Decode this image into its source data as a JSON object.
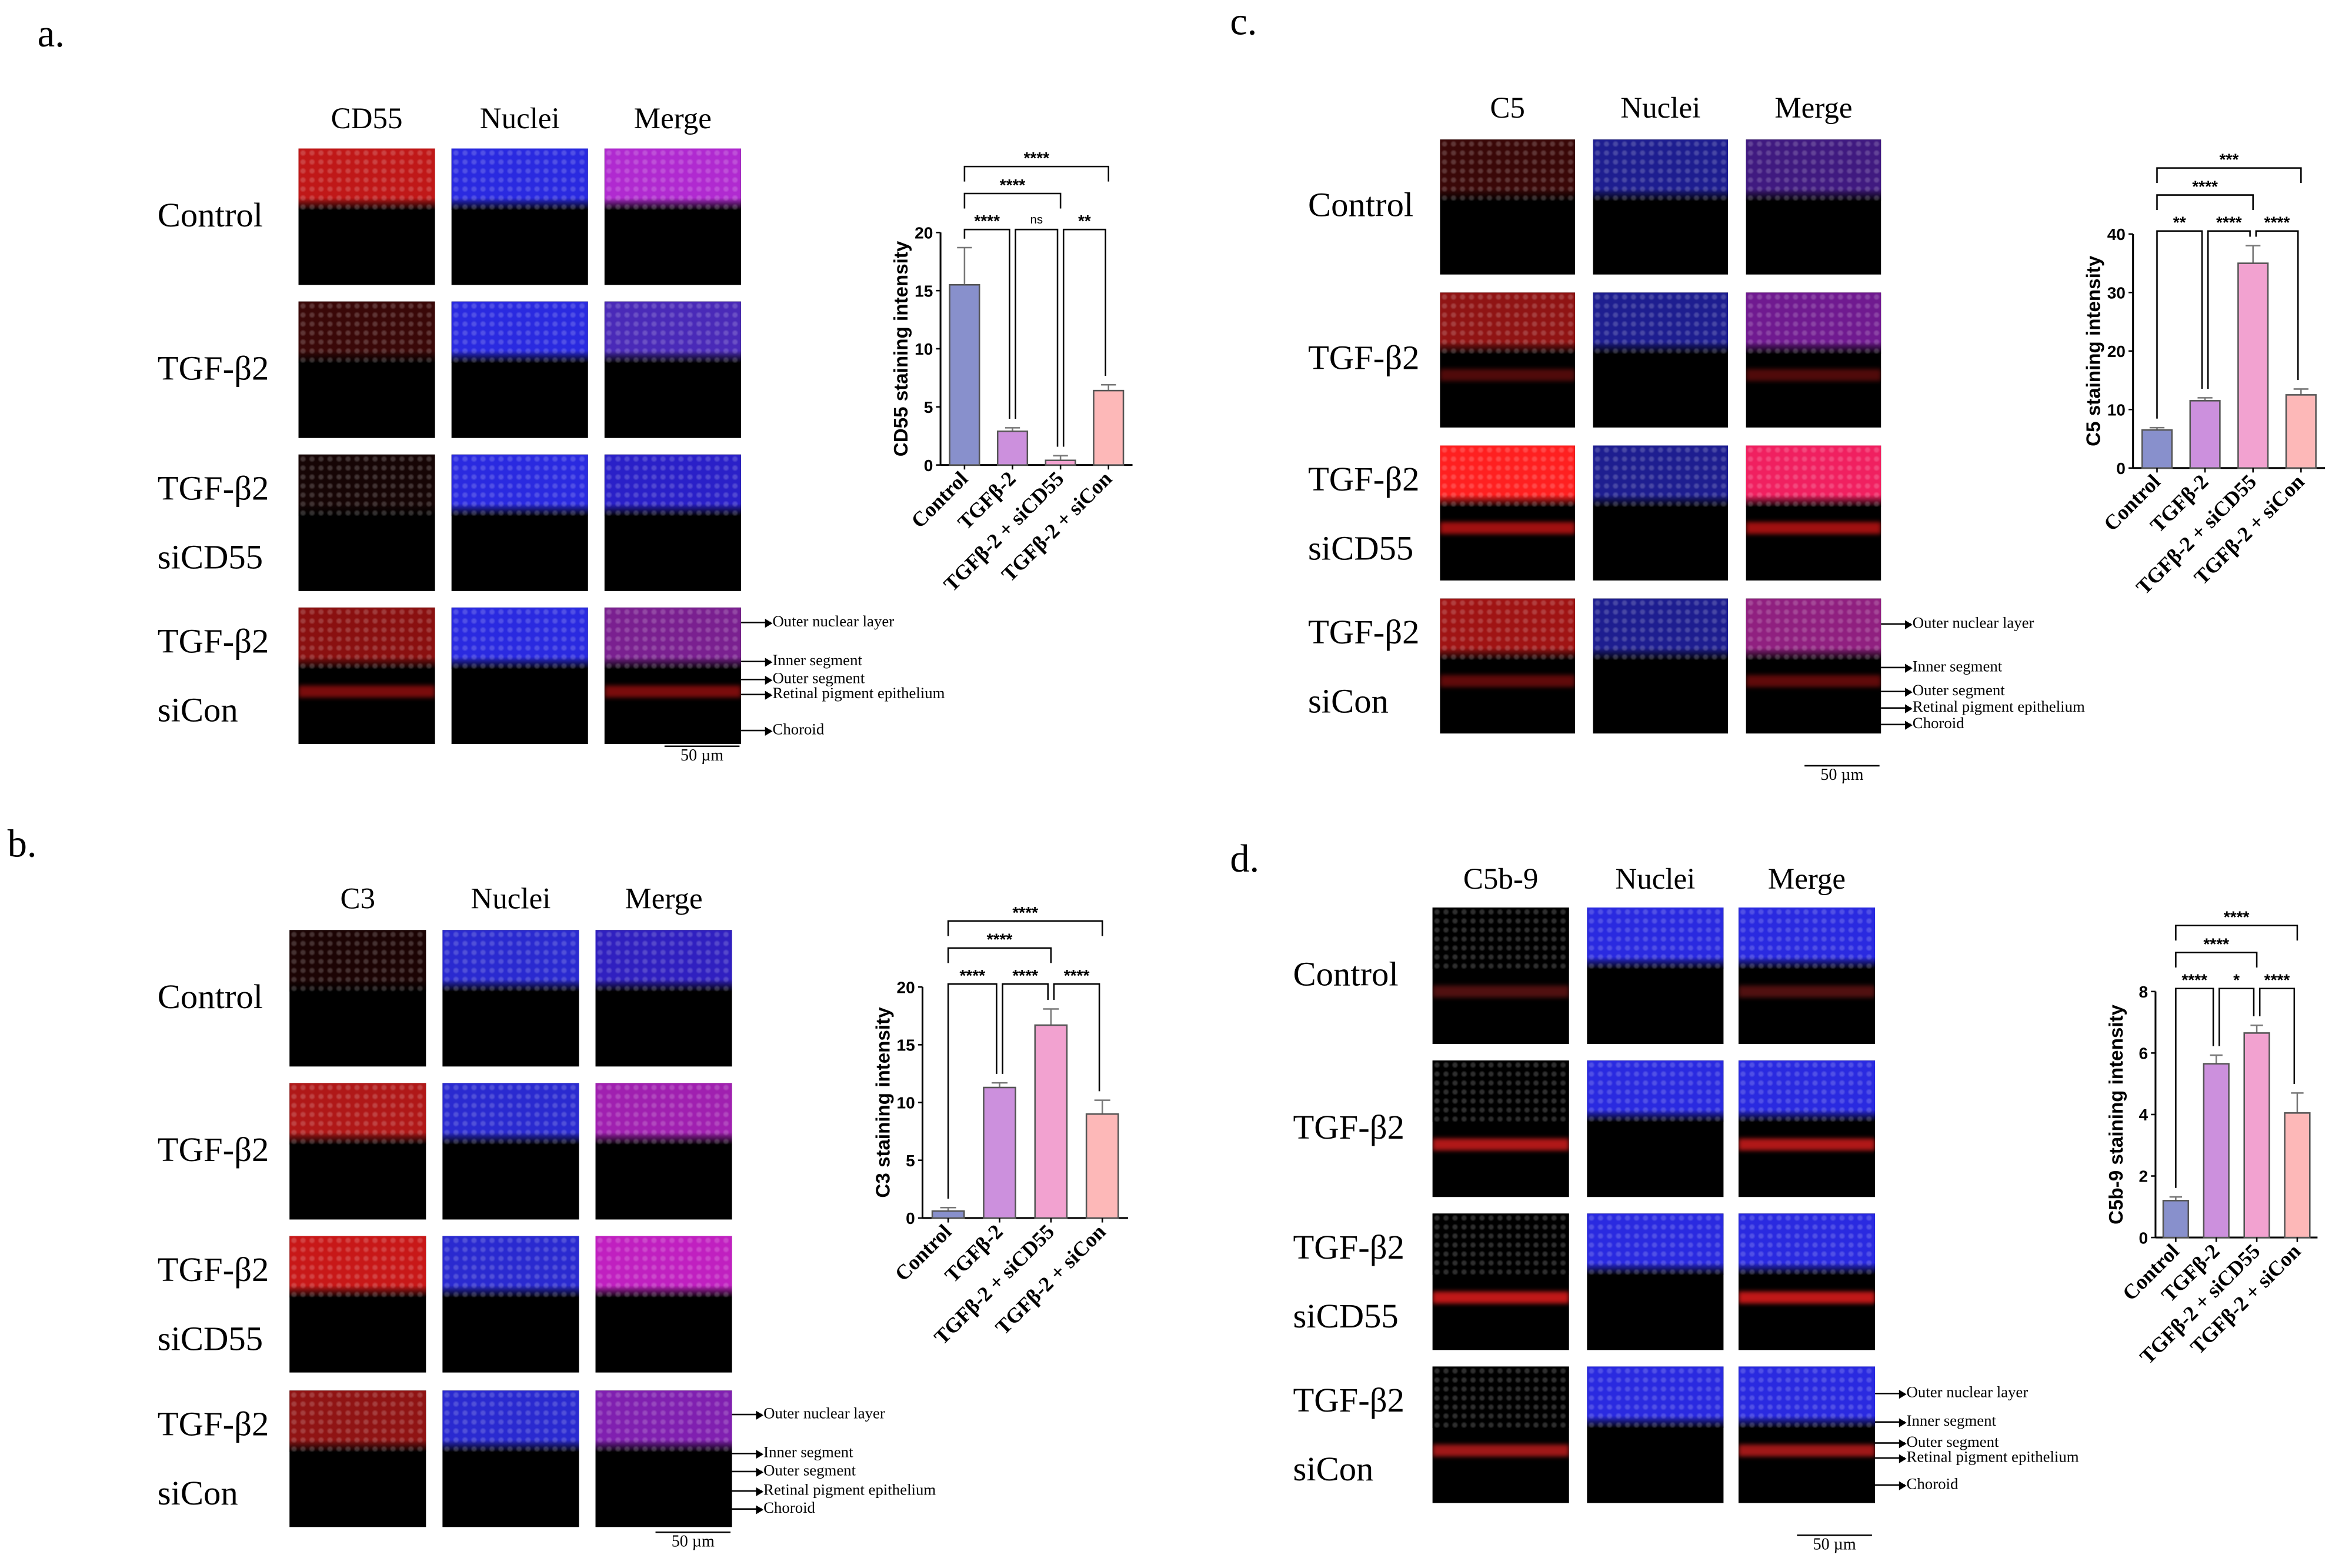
{
  "panels": [
    {
      "letter": "a.",
      "columns": [
        "CD55",
        "Nuclei",
        "Merge"
      ],
      "rows": [
        {
          "label": [
            "Control"
          ],
          "tiles": [
            {
              "top": "#c01818"
            },
            {
              "top": "#2a2ae0"
            },
            {
              "top": "#b02ad0"
            }
          ]
        },
        {
          "label": [
            "TGF-β2"
          ],
          "tiles": [
            {
              "top": "#3a0808"
            },
            {
              "top": "#2a2ae0"
            },
            {
              "top": "#4a2ab8"
            }
          ]
        },
        {
          "label": [
            "TGF-β2",
            "siCD55"
          ],
          "tiles": [
            {
              "top": "#160505"
            },
            {
              "top": "#2a2ae0"
            },
            {
              "top": "#2a20c8"
            }
          ]
        },
        {
          "label": [
            "TGF-β2",
            "siCon"
          ],
          "tiles": [
            {
              "top": "#8a1010",
              "band": "#7a0c0c"
            },
            {
              "top": "#2a2ae0"
            },
            {
              "top": "#7a2090",
              "band": "#7a0c0c"
            }
          ]
        }
      ],
      "layers": [
        "Outer nuclear layer",
        "Inner segment",
        "Outer segment",
        "Retinal pigment epithelium",
        "Choroid"
      ],
      "scale_bar": "50 µm"
    },
    {
      "letter": "b.",
      "columns": [
        "C3",
        "Nuclei",
        "Merge"
      ],
      "rows": [
        {
          "label": [
            "Control"
          ],
          "tiles": [
            {
              "top": "#1c0404"
            },
            {
              "top": "#2a2ad0"
            },
            {
              "top": "#3020c0"
            }
          ]
        },
        {
          "label": [
            "TGF-β2"
          ],
          "tiles": [
            {
              "top": "#b01818"
            },
            {
              "top": "#2a2ad0"
            },
            {
              "top": "#a020b0"
            }
          ]
        },
        {
          "label": [
            "TGF-β2",
            "siCD55"
          ],
          "tiles": [
            {
              "top": "#c81818"
            },
            {
              "top": "#2a2ad0"
            },
            {
              "top": "#c020c0"
            }
          ]
        },
        {
          "label": [
            "TGF-β2",
            "siCon"
          ],
          "tiles": [
            {
              "top": "#901414"
            },
            {
              "top": "#2a2ad0"
            },
            {
              "top": "#8020b0"
            }
          ]
        }
      ],
      "layers": [
        "Outer nuclear layer",
        "Inner segment",
        "Outer segment",
        "Retinal pigment epithelium",
        "Choroid"
      ],
      "scale_bar": "50 µm"
    },
    {
      "letter": "c.",
      "columns": [
        "C5",
        "Nuclei",
        "Merge"
      ],
      "rows": [
        {
          "label": [
            "Control"
          ],
          "tiles": [
            {
              "top": "#3a0808"
            },
            {
              "top": "#1e1e90"
            },
            {
              "top": "#401a80"
            }
          ]
        },
        {
          "label": [
            "TGF-β2"
          ],
          "tiles": [
            {
              "top": "#901414",
              "band": "#500a0a"
            },
            {
              "top": "#1e1e90"
            },
            {
              "top": "#701a90",
              "band": "#500a0a"
            }
          ]
        },
        {
          "label": [
            "TGF-β2",
            "siCD55"
          ],
          "tiles": [
            {
              "top": "#ff2020",
              "band": "#a01010"
            },
            {
              "top": "#1e1e90"
            },
            {
              "top": "#f02060",
              "band": "#a01010"
            }
          ]
        },
        {
          "label": [
            "TGF-β2",
            "siCon"
          ],
          "tiles": [
            {
              "top": "#a01414",
              "band": "#600a0a"
            },
            {
              "top": "#1e1e90"
            },
            {
              "top": "#902080",
              "band": "#600a0a"
            }
          ]
        }
      ],
      "layers": [
        "Outer nuclear layer",
        "Inner segment",
        "Outer segment",
        "Retinal pigment epithelium",
        "Choroid"
      ],
      "scale_bar": "50 µm"
    },
    {
      "letter": "d.",
      "columns": [
        "C5b-9",
        "Nuclei",
        "Merge"
      ],
      "rows": [
        {
          "label": [
            "Control"
          ],
          "tiles": [
            {
              "top": "#000000",
              "band": "#501010"
            },
            {
              "top": "#2a2ae0"
            },
            {
              "top": "#2a2ae0",
              "band": "#501010"
            }
          ]
        },
        {
          "label": [
            "TGF-β2"
          ],
          "tiles": [
            {
              "top": "#000000",
              "band": "#b01818"
            },
            {
              "top": "#2a2ae0"
            },
            {
              "top": "#2a2ae0",
              "band": "#b01818"
            }
          ]
        },
        {
          "label": [
            "TGF-β2",
            "siCD55"
          ],
          "tiles": [
            {
              "top": "#000000",
              "band": "#c01818"
            },
            {
              "top": "#2a2ae0"
            },
            {
              "top": "#2a2ae0",
              "band": "#c01818"
            }
          ]
        },
        {
          "label": [
            "TGF-β2",
            "siCon"
          ],
          "tiles": [
            {
              "top": "#000000",
              "band": "#a01818"
            },
            {
              "top": "#2a2ae0"
            },
            {
              "top": "#2a2ae0",
              "band": "#a01818"
            }
          ]
        }
      ],
      "layers": [
        "Outer nuclear layer",
        "Inner segment",
        "Outer segment",
        "Retinal pigment epithelium",
        "Choroid"
      ],
      "scale_bar": "50 µm"
    }
  ],
  "colors": {
    "bars": [
      "#8890cc",
      "#cc90dd",
      "#f2a2d0",
      "#fdb8b8"
    ],
    "bar_edge": "#555555",
    "error": "#777777"
  },
  "chart_data": [
    {
      "type": "bar",
      "ylabel": "CD55 staining intensity",
      "categories": [
        "Control",
        "TGFβ-2",
        "TGFβ-2 + siCD55",
        "TGFβ-2 + siCon"
      ],
      "values": [
        15.5,
        2.9,
        0.4,
        6.4
      ],
      "errors": [
        3.2,
        0.3,
        0.4,
        0.5
      ],
      "ylim": [
        0,
        20
      ],
      "yticks": [
        0,
        5,
        10,
        15,
        20
      ],
      "comparisons": [
        {
          "a": 0,
          "b": 1,
          "label": "****"
        },
        {
          "a": 1,
          "b": 2,
          "label": "ns"
        },
        {
          "a": 2,
          "b": 3,
          "label": "**"
        },
        {
          "a": 0,
          "b": 2,
          "label": "****"
        },
        {
          "a": 0,
          "b": 3,
          "label": "****"
        }
      ]
    },
    {
      "type": "bar",
      "ylabel": "C3 staining intensity",
      "categories": [
        "Control",
        "TGFβ-2",
        "TGFβ-2 + siCD55",
        "TGFβ-2 + siCon"
      ],
      "values": [
        0.6,
        11.3,
        16.7,
        9.0
      ],
      "errors": [
        0.3,
        0.4,
        1.4,
        1.2
      ],
      "ylim": [
        0,
        20
      ],
      "yticks": [
        0,
        5,
        10,
        15,
        20
      ],
      "comparisons": [
        {
          "a": 0,
          "b": 1,
          "label": "****"
        },
        {
          "a": 1,
          "b": 2,
          "label": "****"
        },
        {
          "a": 2,
          "b": 3,
          "label": "****"
        },
        {
          "a": 0,
          "b": 2,
          "label": "****"
        },
        {
          "a": 0,
          "b": 3,
          "label": "****"
        }
      ]
    },
    {
      "type": "bar",
      "ylabel": "C5 staining intensity",
      "categories": [
        "Control",
        "TGFβ-2",
        "TGFβ-2 + siCD55",
        "TGFβ-2 + siCon"
      ],
      "values": [
        6.5,
        11.5,
        35.0,
        12.5
      ],
      "errors": [
        0.4,
        0.5,
        3.0,
        1.0
      ],
      "ylim": [
        0,
        40
      ],
      "yticks": [
        0,
        10,
        20,
        30,
        40
      ],
      "comparisons": [
        {
          "a": 0,
          "b": 1,
          "label": "**"
        },
        {
          "a": 1,
          "b": 2,
          "label": "****"
        },
        {
          "a": 2,
          "b": 3,
          "label": "****"
        },
        {
          "a": 0,
          "b": 2,
          "label": "****"
        },
        {
          "a": 0,
          "b": 3,
          "label": "***"
        }
      ]
    },
    {
      "type": "bar",
      "ylabel": "C5b-9 staining intensity",
      "categories": [
        "Control",
        "TGFβ-2",
        "TGFβ-2 + siCD55",
        "TGFβ-2 + siCon"
      ],
      "values": [
        1.2,
        5.65,
        6.65,
        4.05
      ],
      "errors": [
        0.12,
        0.28,
        0.25,
        0.65
      ],
      "ylim": [
        0,
        8
      ],
      "yticks": [
        0,
        2,
        4,
        6,
        8
      ],
      "comparisons": [
        {
          "a": 0,
          "b": 1,
          "label": "****"
        },
        {
          "a": 1,
          "b": 2,
          "label": "*"
        },
        {
          "a": 2,
          "b": 3,
          "label": "****"
        },
        {
          "a": 0,
          "b": 2,
          "label": "****"
        },
        {
          "a": 0,
          "b": 3,
          "label": "****"
        }
      ]
    }
  ]
}
